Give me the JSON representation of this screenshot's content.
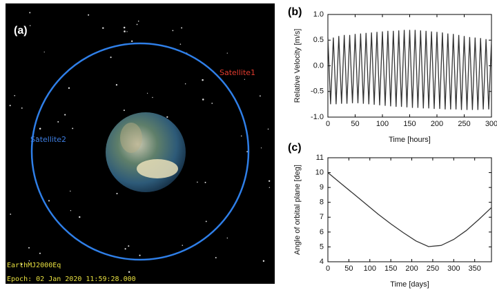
{
  "image_panel": {
    "label": "(a)",
    "satellite1": "Satellite1",
    "satellite2": "Satellite2",
    "frame": "EarthMJ2000Eq",
    "epoch": "Epoch: 02 Jan 2020 11:59:28.000"
  },
  "chart_data": [
    {
      "type": "line",
      "panel_label": "(b)",
      "x_label": "Time [hours]",
      "y_label": "Relative Velocity [m/s]",
      "color": "#333333",
      "x": [
        0,
        5,
        10,
        15,
        20,
        25,
        30,
        35,
        40,
        45,
        50,
        55,
        60,
        65,
        70,
        75,
        80,
        85,
        90,
        95,
        100,
        105,
        110,
        115,
        120,
        125,
        130,
        135,
        140,
        145,
        150,
        155,
        160,
        165,
        170,
        175,
        180,
        185,
        190,
        195,
        200,
        205,
        210,
        215,
        220,
        225,
        230,
        235,
        240,
        245,
        250,
        255,
        260,
        265,
        270,
        275,
        280,
        285,
        290,
        295,
        300
      ],
      "values": [
        0.55,
        -0.75,
        0.55,
        -0.75,
        0.58,
        -0.74,
        0.6,
        -0.74,
        0.6,
        -0.73,
        0.62,
        -0.73,
        0.63,
        -0.74,
        0.64,
        -0.75,
        0.65,
        -0.76,
        0.66,
        -0.77,
        0.67,
        -0.78,
        0.68,
        -0.79,
        0.68,
        -0.8,
        0.69,
        -0.8,
        0.7,
        -0.81,
        0.7,
        -0.82,
        0.7,
        -0.82,
        0.69,
        -0.83,
        0.68,
        -0.83,
        0.67,
        -0.84,
        0.66,
        -0.84,
        0.65,
        -0.85,
        0.63,
        -0.85,
        0.62,
        -0.85,
        0.6,
        -0.86,
        0.58,
        -0.86,
        0.56,
        -0.86,
        0.55,
        -0.86,
        0.54,
        -0.85,
        0.52,
        -0.85,
        0.5
      ],
      "xlim": [
        0,
        300
      ],
      "xticks": [
        0,
        50,
        100,
        150,
        200,
        250,
        300
      ],
      "ylim": [
        -1,
        1
      ],
      "yticks": [
        {
          "value": -1,
          "label": "-1.0"
        },
        -0.5,
        {
          "value": 0,
          "label": "0.0"
        },
        0.5,
        {
          "value": 1,
          "label": "1.0"
        }
      ]
    },
    {
      "type": "line",
      "panel_label": "(c)",
      "x_label": "Time [days]",
      "y_label": "Angle of orbital plane [deg]",
      "color": "#333333",
      "x": [
        0,
        30,
        60,
        90,
        120,
        150,
        180,
        210,
        240,
        270,
        300,
        330,
        360,
        390
      ],
      "values": [
        10,
        9.3,
        8.6,
        7.9,
        7.2,
        6.55,
        5.95,
        5.4,
        5.02,
        5.1,
        5.5,
        6.1,
        6.85,
        7.65
      ],
      "xlim": [
        0,
        390
      ],
      "xticks": [
        0,
        50,
        100,
        150,
        200,
        250,
        300,
        350
      ],
      "ylim": [
        4,
        11
      ],
      "yticks": [
        4,
        5,
        6,
        7,
        8,
        9,
        10,
        11
      ]
    }
  ]
}
